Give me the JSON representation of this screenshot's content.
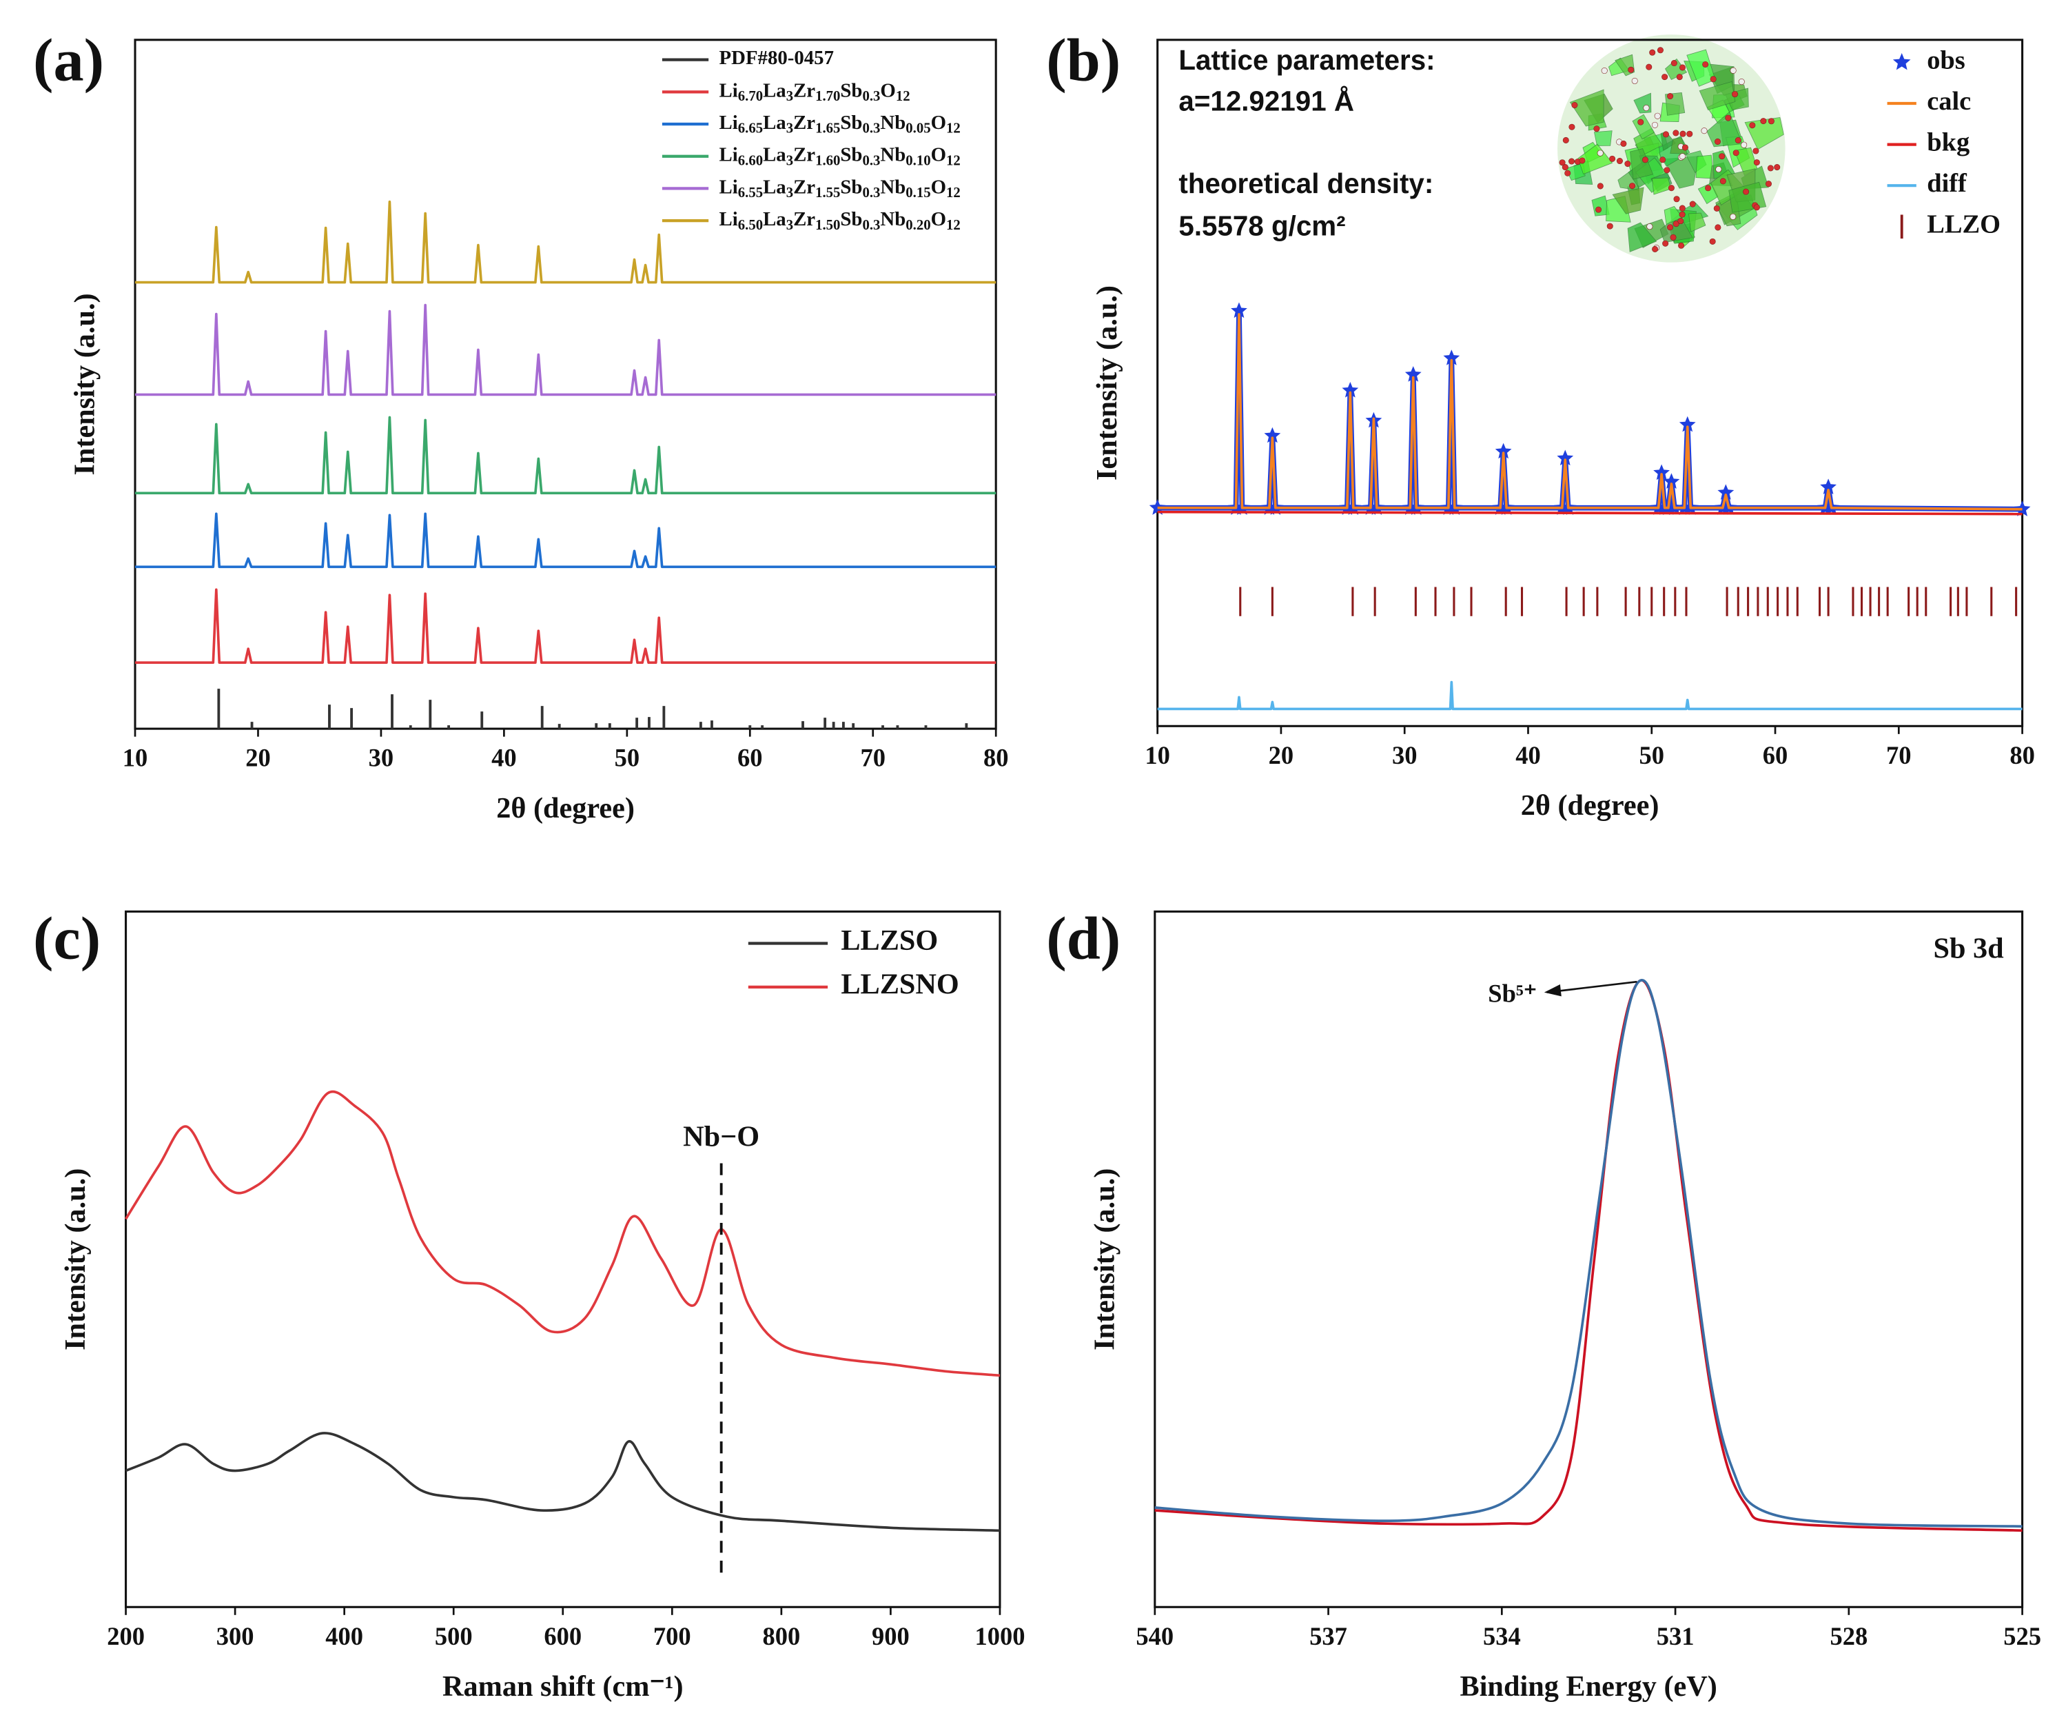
{
  "chart_data": [
    {
      "type": "line",
      "label": "(a)",
      "xlabel": "2θ (degree)",
      "ylabel": "Intensity (a.u.)",
      "xlim": [
        10,
        80
      ],
      "xticks": [
        10,
        20,
        30,
        40,
        50,
        60,
        70,
        80
      ],
      "ylim": [
        0,
        100
      ],
      "legend": "upper right",
      "name_subscripts": true,
      "x": [
        10,
        16.35,
        16.6,
        16.85,
        18.95,
        19.2,
        19.45,
        25.25,
        25.5,
        25.75,
        27.05,
        27.3,
        27.55,
        30.45,
        30.7,
        30.95,
        33.35,
        33.6,
        33.85,
        37.65,
        37.9,
        38.15,
        42.55,
        42.8,
        43.05,
        50.35,
        50.6,
        50.85,
        51.25,
        51.5,
        51.75,
        52.35,
        52.6,
        52.85,
        80
      ],
      "series": [
        {
          "name": "PDF#80-0457",
          "type": "stick",
          "color": "#333333",
          "x": [
            16.8,
            19.5,
            25.8,
            27.6,
            30.9,
            32.4,
            34,
            35.5,
            38.2,
            43.1,
            44.5,
            47.5,
            48.6,
            50.8,
            51.8,
            53,
            56,
            56.9,
            60,
            61,
            64.3,
            66.1,
            66.8,
            67.6,
            68.4,
            70.8,
            72,
            74.3,
            77.6
          ],
          "values": [
            5.8,
            1,
            3.5,
            3,
            5,
            0.5,
            4.2,
            0.5,
            2.5,
            3.3,
            0.7,
            0.8,
            0.8,
            1.6,
            1.7,
            3.3,
            1,
            1.2,
            0.5,
            0.5,
            1.1,
            1.6,
            1,
            1,
            0.8,
            0.5,
            0.5,
            0.5,
            0.8
          ]
        },
        {
          "name": "Li6.70La3Zr1.70Sb0.3O12",
          "color": "#e0393e",
          "values": [
            9.6,
            9.6,
            20.2,
            9.6,
            9.6,
            11.6,
            9.6,
            9.6,
            16.9,
            9.6,
            9.6,
            14.8,
            9.6,
            9.6,
            19.4,
            9.6,
            9.6,
            19.6,
            9.6,
            9.6,
            14.6,
            9.6,
            9.6,
            14.2,
            9.6,
            9.6,
            12.9,
            9.6,
            9.6,
            11.6,
            9.6,
            9.6,
            16.1,
            9.6,
            9.6
          ]
        },
        {
          "name": "Li6.65La3Zr1.65Sb0.3Nb0.05O12",
          "color": "#1f6fd1",
          "values": [
            23.5,
            23.5,
            31.2,
            23.5,
            23.5,
            24.7,
            23.5,
            23.5,
            29.8,
            23.5,
            23.5,
            28.1,
            23.5,
            23.5,
            31,
            23.5,
            23.5,
            31.2,
            23.5,
            23.5,
            27.9,
            23.5,
            23.5,
            27.5,
            23.5,
            23.5,
            25.8,
            23.5,
            23.5,
            25,
            23.5,
            23.5,
            29.1,
            23.5,
            23.5
          ]
        },
        {
          "name": "Li6.60La3Zr1.60Sb0.3Nb0.10O12",
          "color": "#3aa86b",
          "values": [
            34.2,
            34.2,
            44.2,
            34.2,
            34.2,
            35.5,
            34.2,
            34.2,
            43,
            34.2,
            34.2,
            40.2,
            34.2,
            34.2,
            45.2,
            34.2,
            34.2,
            44.8,
            34.2,
            34.2,
            40,
            34.2,
            34.2,
            39.2,
            34.2,
            34.2,
            37.5,
            34.2,
            34.2,
            36.2,
            34.2,
            34.2,
            40.9,
            34.2,
            34.2
          ]
        },
        {
          "name": "Li6.55La3Zr1.55Sb0.3Nb0.15O12",
          "color": "#a66bd3",
          "values": [
            48.5,
            48.5,
            60.2,
            48.5,
            48.5,
            50.4,
            48.5,
            48.5,
            57.7,
            48.5,
            48.5,
            54.8,
            48.5,
            48.5,
            60.6,
            48.5,
            48.5,
            61.5,
            48.5,
            48.5,
            55,
            48.5,
            48.5,
            54.3,
            48.5,
            48.5,
            52,
            48.5,
            48.5,
            51,
            48.5,
            48.5,
            56.4,
            48.5,
            48.5
          ]
        },
        {
          "name": "Li6.50La3Zr1.50Sb0.3Nb0.20O12",
          "color": "#c9a227",
          "values": [
            64.8,
            64.8,
            72.8,
            64.8,
            64.8,
            66.3,
            64.8,
            64.8,
            72.7,
            64.8,
            64.8,
            70.4,
            64.8,
            64.8,
            76.5,
            64.8,
            64.8,
            74.8,
            64.8,
            64.8,
            70.2,
            64.8,
            64.8,
            70,
            64.8,
            64.8,
            68.1,
            64.8,
            64.8,
            67.3,
            64.8,
            64.8,
            71.7,
            64.8,
            64.8
          ]
        }
      ]
    },
    {
      "type": "line",
      "label": "(b)",
      "xlabel": "2θ (degree)",
      "ylabel": "Ientensity (a.u.)",
      "xlim": [
        10,
        80
      ],
      "xticks": [
        10,
        20,
        30,
        40,
        50,
        60,
        70,
        80
      ],
      "ylim": [
        0,
        100
      ],
      "legend": "upper right",
      "annotations": [
        "Lattice parameters:",
        "a=12.92191 Å",
        "theoretical density:",
        "5.5578 g/cm²"
      ],
      "x": [
        10,
        16.35,
        16.6,
        16.85,
        19.05,
        19.3,
        19.55,
        25.35,
        25.6,
        25.85,
        27.25,
        27.5,
        27.75,
        30.45,
        30.7,
        30.95,
        33.55,
        33.8,
        34.05,
        37.75,
        38,
        38.25,
        42.75,
        43,
        43.25,
        50.55,
        50.8,
        51.05,
        51.35,
        51.6,
        51.85,
        52.65,
        52.9,
        53.15,
        55.75,
        56,
        56.25,
        64.05,
        64.3,
        64.55,
        80
      ],
      "series": [
        {
          "name": "obs",
          "type": "scatter",
          "color": "#1f3fdd",
          "values": [
            31.8,
            31.8,
            60.5,
            31.8,
            31.8,
            42.3,
            31.8,
            31.8,
            48.9,
            31.8,
            31.8,
            44.5,
            31.8,
            31.8,
            51.2,
            31.8,
            31.8,
            53.6,
            31.8,
            31.8,
            40,
            31.8,
            31.8,
            39,
            31.8,
            31.8,
            36.9,
            31.8,
            31.8,
            35.6,
            31.8,
            31.8,
            43.9,
            31.8,
            31.8,
            34,
            31.8,
            31.8,
            34.8,
            31.8,
            31.6
          ]
        },
        {
          "name": "calc",
          "color": "#f58220",
          "values": [
            31.8,
            31.8,
            60,
            31.8,
            31.8,
            42,
            31.8,
            31.8,
            48.6,
            31.8,
            31.8,
            44.8,
            31.8,
            31.8,
            50.8,
            31.8,
            31.8,
            53.3,
            31.8,
            31.8,
            39.8,
            31.8,
            31.8,
            38.8,
            31.8,
            31.8,
            36.7,
            31.8,
            31.8,
            35.3,
            31.8,
            31.8,
            43.6,
            31.8,
            31.8,
            33.7,
            31.8,
            31.8,
            34.4,
            31.8,
            31.6
          ]
        },
        {
          "name": "bkg",
          "color": "#e02020",
          "x": [
            10,
            80
          ],
          "values": [
            31.2,
            30.9
          ]
        },
        {
          "name": "diff",
          "color": "#55b4ec",
          "x": [
            10,
            16.5,
            16.6,
            16.7,
            19.2,
            19.3,
            19.4,
            33.7,
            33.8,
            33.9,
            52.8,
            52.9,
            53,
            80
          ],
          "values": [
            2.5,
            2.5,
            4.2,
            2.5,
            2.5,
            3.5,
            2.5,
            2.5,
            6.4,
            2.5,
            2.5,
            3.8,
            2.5,
            2.5
          ]
        },
        {
          "name": "LLZO",
          "type": "tick",
          "color": "#8b1a1a",
          "x": [
            16.7,
            19.3,
            25.8,
            27.6,
            30.9,
            32.5,
            34,
            35.4,
            38.2,
            39.5,
            43.1,
            44.5,
            45.6,
            47.9,
            49,
            50,
            51,
            51.9,
            52.8,
            56.1,
            57,
            57.8,
            58.6,
            59.4,
            60.2,
            61,
            61.8,
            63.6,
            64.3,
            66.3,
            67,
            67.7,
            68.4,
            69.1,
            70.8,
            71.5,
            72.2,
            74.2,
            74.8,
            75.5,
            77.5,
            79.5
          ]
        }
      ]
    },
    {
      "type": "line",
      "label": "(c)",
      "xlabel": "Raman shift (cm⁻¹)",
      "ylabel": "Intensity (a.u.)",
      "xlim": [
        200,
        1000
      ],
      "xticks": [
        200,
        300,
        400,
        500,
        600,
        700,
        800,
        900,
        1000
      ],
      "ylim": [
        0,
        100
      ],
      "legend": "upper right",
      "smooth": true,
      "annotations": [
        {
          "text": "Nb−O",
          "x": 745
        }
      ],
      "series": [
        {
          "name": "LLZSO",
          "color": "#333333",
          "x": [
            200,
            230,
            255,
            280,
            300,
            330,
            350,
            380,
            410,
            440,
            470,
            500,
            530,
            580,
            620,
            645,
            660,
            675,
            700,
            750,
            800,
            900,
            1000
          ],
          "values": [
            19.6,
            21.5,
            23.4,
            20.6,
            19.6,
            20.6,
            22.5,
            25,
            23.4,
            20.6,
            16.8,
            15.8,
            15.4,
            13.9,
            14.9,
            18.7,
            23.8,
            20.6,
            15.8,
            13,
            12.4,
            11.4,
            11
          ]
        },
        {
          "name": "LLZSNO",
          "color": "#e0393e",
          "x": [
            200,
            230,
            255,
            280,
            300,
            320,
            340,
            360,
            385,
            410,
            435,
            450,
            470,
            500,
            530,
            560,
            590,
            620,
            645,
            665,
            690,
            720,
            745,
            770,
            800,
            850,
            900,
            950,
            1000
          ],
          "values": [
            55.8,
            63.4,
            69.1,
            62.5,
            59.6,
            60.6,
            63.4,
            67.2,
            73.9,
            72,
            68.2,
            61.5,
            53,
            47.2,
            46.3,
            43.4,
            39.6,
            41.5,
            49.1,
            56.2,
            50.1,
            43.4,
            54.3,
            43.4,
            37.7,
            35.8,
            34.9,
            33.9,
            33.3
          ]
        }
      ]
    },
    {
      "type": "line",
      "label": "(d)",
      "title": "Sb 3d",
      "xlabel": "Binding Energy (eV)",
      "ylabel": "Intensity (a.u.)",
      "xlim": [
        540,
        525
      ],
      "xticks": [
        540,
        537,
        534,
        531,
        528,
        525
      ],
      "ylim": [
        0,
        100
      ],
      "smooth": true,
      "annotations": [
        {
          "text": "Sb⁵⁺"
        }
      ],
      "series": [
        {
          "color": "#cc1122",
          "x": [
            540,
            538,
            536,
            534,
            533.3,
            532.8,
            532.4,
            532,
            531.6,
            531.2,
            530.8,
            530.3,
            529.8,
            529,
            525
          ],
          "values": [
            13.9,
            12.8,
            12,
            12,
            13,
            21.5,
            50.1,
            78.7,
            90.1,
            80.6,
            55.8,
            27.2,
            14.9,
            12,
            11
          ]
        },
        {
          "color": "#3a6ea5",
          "x": [
            540,
            538,
            536,
            535,
            534,
            533.3,
            532.8,
            532.3,
            531.9,
            531.6,
            531.3,
            530.9,
            530.4,
            530,
            529.5,
            528,
            525
          ],
          "values": [
            14.3,
            13,
            12.4,
            13,
            14.9,
            20.6,
            31,
            59.6,
            82.5,
            90.1,
            84.4,
            63.4,
            33,
            19.6,
            13.9,
            12,
            11.6
          ]
        }
      ]
    }
  ]
}
